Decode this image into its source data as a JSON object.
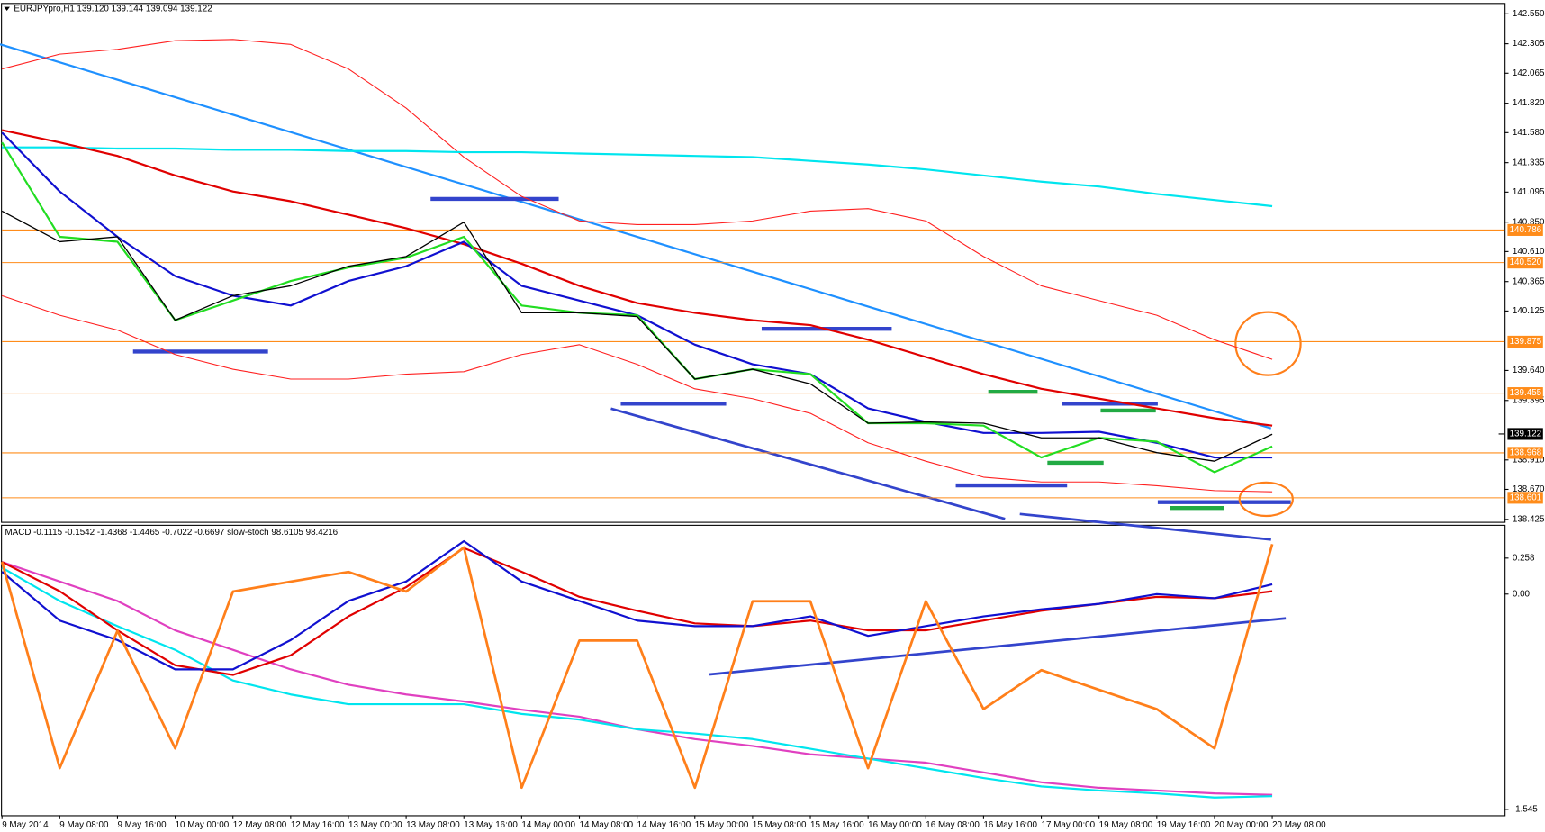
{
  "chart_data": [
    {
      "type": "line",
      "title": "EURJPYpro,H1",
      "subtitle": "139.120 139.144 139.094 139.122",
      "categories": [
        "9 May 2014",
        "9 May 08:00",
        "9 May 16:00",
        "10 May 00:00",
        "12 May 08:00",
        "12 May 16:00",
        "13 May 00:00",
        "13 May 08:00",
        "13 May 16:00",
        "14 May 00:00",
        "14 May 08:00",
        "14 May 16:00",
        "15 May 00:00",
        "15 May 08:00",
        "15 May 16:00",
        "16 May 00:00",
        "16 May 08:00",
        "16 May 16:00",
        "17 May 00:00",
        "19 May 08:00",
        "19 May 16:00",
        "20 May 00:00",
        "20 May 08:00"
      ],
      "series": [
        {
          "color": "#ff2020",
          "values": [
            142.1,
            142.22,
            142.26,
            142.33,
            142.34,
            142.3,
            142.1,
            141.78,
            141.38,
            141.06,
            140.86,
            140.83,
            140.83,
            140.86,
            140.94,
            140.96,
            140.86,
            140.57,
            140.33,
            140.21,
            140.09,
            139.89,
            139.73
          ]
        },
        {
          "color": "#ff2020",
          "values": [
            140.25,
            140.09,
            139.97,
            139.77,
            139.65,
            139.57,
            139.57,
            139.61,
            139.63,
            139.77,
            139.85,
            139.69,
            139.49,
            139.41,
            139.29,
            139.05,
            138.9,
            138.77,
            138.73,
            138.73,
            138.7,
            138.66,
            138.65
          ]
        },
        {
          "color": "#00e5ee",
          "values": [
            141.46,
            141.46,
            141.45,
            141.45,
            141.44,
            141.44,
            141.43,
            141.43,
            141.42,
            141.42,
            141.41,
            141.4,
            141.39,
            141.38,
            141.35,
            141.32,
            141.28,
            141.23,
            141.18,
            141.14,
            141.08,
            141.03,
            140.98
          ]
        },
        {
          "color": "#e00000",
          "values": [
            141.6,
            141.5,
            141.39,
            141.23,
            141.1,
            141.02,
            140.91,
            140.8,
            140.67,
            140.51,
            140.33,
            140.19,
            140.11,
            140.05,
            140.01,
            139.89,
            139.75,
            139.61,
            139.49,
            139.41,
            139.33,
            139.25,
            139.19
          ]
        },
        {
          "color": "#1010d0",
          "values": [
            141.58,
            141.1,
            140.73,
            140.41,
            140.25,
            140.17,
            140.37,
            140.49,
            140.69,
            140.33,
            140.21,
            140.09,
            139.85,
            139.69,
            139.61,
            139.33,
            139.22,
            139.13,
            139.13,
            139.14,
            139.05,
            138.93,
            138.93
          ]
        },
        {
          "color": "#22dd22",
          "values": [
            141.5,
            140.73,
            140.69,
            140.05,
            140.21,
            140.37,
            140.48,
            140.56,
            140.73,
            140.17,
            140.11,
            140.09,
            139.57,
            139.65,
            139.61,
            139.21,
            139.21,
            139.19,
            138.93,
            139.09,
            139.06,
            138.81,
            139.02
          ]
        },
        {
          "color": "#000000",
          "values": [
            140.94,
            140.69,
            140.73,
            140.05,
            140.25,
            140.33,
            140.49,
            140.57,
            140.85,
            140.11,
            140.11,
            140.08,
            139.57,
            139.65,
            139.53,
            139.21,
            139.22,
            139.21,
            139.09,
            139.09,
            138.97,
            138.9,
            139.12
          ]
        }
      ],
      "ylim": [
        138.405,
        142.63
      ],
      "yticks": [
        {
          "value": 142.55,
          "label": "142.550"
        },
        {
          "value": 142.305,
          "label": "142.305"
        },
        {
          "value": 142.065,
          "label": "142.065"
        },
        {
          "value": 141.82,
          "label": "141.820"
        },
        {
          "value": 141.58,
          "label": "141.580"
        },
        {
          "value": 141.335,
          "label": "141.335"
        },
        {
          "value": 141.095,
          "label": "141.095"
        },
        {
          "value": 140.85,
          "label": "140.850"
        },
        {
          "value": 140.61,
          "label": "140.610"
        },
        {
          "value": 140.365,
          "label": "140.365"
        },
        {
          "value": 140.125,
          "label": "140.125"
        },
        {
          "value": 139.64,
          "label": "139.640"
        },
        {
          "value": 139.395,
          "label": "139.395"
        },
        {
          "value": 138.91,
          "label": "138.910"
        },
        {
          "value": 138.67,
          "label": "138.670"
        },
        {
          "value": 138.425,
          "label": "138.425"
        }
      ],
      "levels_color": "#ff8c1a",
      "levels": [
        {
          "value": 140.786,
          "label": "140.786"
        },
        {
          "value": 140.52,
          "label": "140.520"
        },
        {
          "value": 139.875,
          "label": "139.875"
        },
        {
          "value": 139.455,
          "label": "139.455"
        },
        {
          "value": 138.968,
          "label": "138.968"
        },
        {
          "value": 138.601,
          "label": "138.601"
        }
      ],
      "price_label": {
        "value": 139.122,
        "label": "139.122"
      }
    },
    {
      "type": "line",
      "title": "MACD -0.1115 -0.1542 -1.4368 -1.4465 -0.7022 -0.6697 slow-stoch 98.6105 98.4216",
      "series": [
        {
          "color": "#e040c0",
          "values": [
            0.23,
            0.09,
            -0.05,
            -0.26,
            -0.4,
            -0.54,
            -0.65,
            -0.72,
            -0.77,
            -0.83,
            -0.88,
            -0.97,
            -1.04,
            -1.09,
            -1.15,
            -1.18,
            -1.21,
            -1.28,
            -1.35,
            -1.39,
            -1.41,
            -1.43,
            -1.44
          ]
        },
        {
          "color": "#00e5ee",
          "values": [
            0.19,
            -0.05,
            -0.23,
            -0.4,
            -0.62,
            -0.72,
            -0.79,
            -0.79,
            -0.79,
            -0.86,
            -0.9,
            -0.97,
            -1.0,
            -1.04,
            -1.11,
            -1.18,
            -1.25,
            -1.32,
            -1.38,
            -1.41,
            -1.43,
            -1.46,
            -1.45
          ]
        },
        {
          "color": "#e00000",
          "values": [
            0.23,
            0.02,
            -0.26,
            -0.51,
            -0.58,
            -0.44,
            -0.16,
            0.05,
            0.33,
            0.16,
            -0.02,
            -0.12,
            -0.21,
            -0.23,
            -0.19,
            -0.26,
            -0.26,
            -0.19,
            -0.12,
            -0.07,
            -0.02,
            -0.03,
            0.02
          ]
        },
        {
          "color": "#1010d0",
          "values": [
            0.16,
            -0.19,
            -0.33,
            -0.54,
            -0.54,
            -0.33,
            -0.05,
            0.09,
            0.38,
            0.09,
            -0.05,
            -0.19,
            -0.23,
            -0.23,
            -0.16,
            -0.3,
            -0.23,
            -0.16,
            -0.11,
            -0.07,
            0.0,
            -0.03,
            0.07
          ]
        },
        {
          "color": "#ff7f1a",
          "axis": "y2",
          "values": [
            91.6,
            10.8,
            64.6,
            18.5,
            80.0,
            83.9,
            87.7,
            80.0,
            97.3,
            3.1,
            60.8,
            60.8,
            3.1,
            76.2,
            76.2,
            10.8,
            76.2,
            33.9,
            49.2,
            41.5,
            33.9,
            18.5,
            98.6
          ]
        }
      ],
      "ylim": [
        -1.587,
        0.49
      ],
      "yticks": [
        0.258,
        {
          "value": 0,
          "label": "0.00"
        },
        -1.545
      ],
      "y2lim": [
        -7.7,
        105.8
      ]
    }
  ]
}
